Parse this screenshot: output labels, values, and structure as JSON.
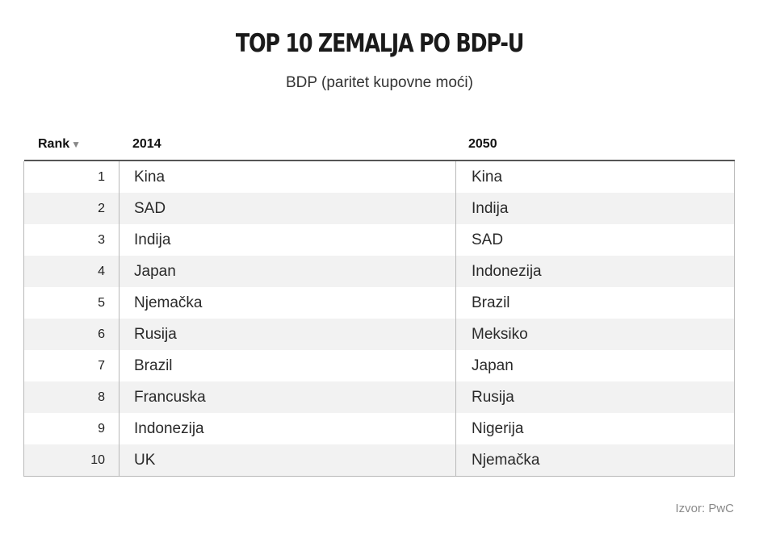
{
  "title": "TOP 10 ZEMALJA PO BDP-U",
  "subtitle": "BDP (paritet kupovne moći)",
  "source": "Izvor: PwC",
  "chart_data": {
    "type": "table",
    "title": "TOP 10 ZEMALJA PO BDP-U",
    "subtitle": "BDP (paritet kupovne moći)",
    "columns": [
      "Rank",
      "2014",
      "2050"
    ],
    "sort_icon": "triangle-down-icon",
    "rows": [
      {
        "rank": "1",
        "y2014": "Kina",
        "y2050": "Kina"
      },
      {
        "rank": "2",
        "y2014": "SAD",
        "y2050": "Indija"
      },
      {
        "rank": "3",
        "y2014": "Indija",
        "y2050": "SAD"
      },
      {
        "rank": "4",
        "y2014": "Japan",
        "y2050": "Indonezija"
      },
      {
        "rank": "5",
        "y2014": "Njemačka",
        "y2050": "Brazil"
      },
      {
        "rank": "6",
        "y2014": "Rusija",
        "y2050": "Meksiko"
      },
      {
        "rank": "7",
        "y2014": "Brazil",
        "y2050": "Japan"
      },
      {
        "rank": "8",
        "y2014": "Francuska",
        "y2050": "Rusija"
      },
      {
        "rank": "9",
        "y2014": "Indonezija",
        "y2050": "Nigerija"
      },
      {
        "rank": "10",
        "y2014": "UK",
        "y2050": "Njemačka"
      }
    ]
  }
}
